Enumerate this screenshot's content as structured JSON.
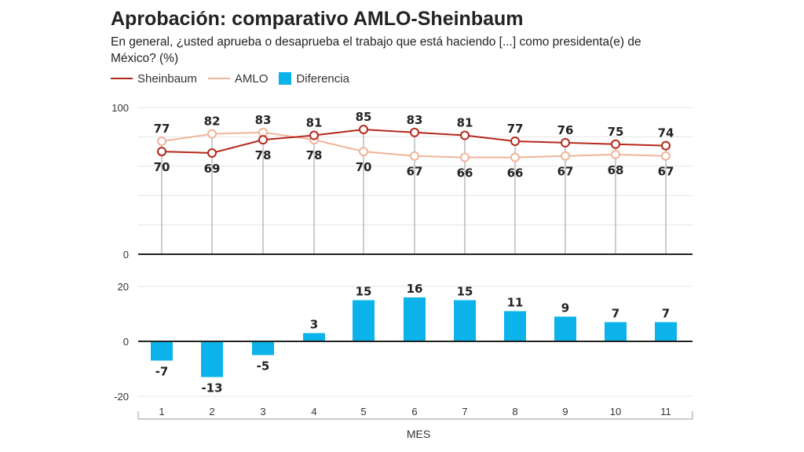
{
  "title": "Aprobación: comparativo AMLO-Sheinbaum",
  "subtitle": "En general, ¿usted aprueba o desaprueba el trabajo que está haciendo [...] como presidenta(e) de México? (%)",
  "legend": {
    "sheinbaum": "Sheinbaum",
    "amlo": "AMLO",
    "diferencia": "Diferencia"
  },
  "colors": {
    "sheinbaum": "#b5281c",
    "amlo": "#efb49a",
    "diferencia": "#0bb3ea"
  },
  "chart_data": [
    {
      "type": "line",
      "x": [
        1,
        2,
        3,
        4,
        5,
        6,
        7,
        8,
        9,
        10,
        11
      ],
      "series": [
        {
          "name": "Sheinbaum",
          "values": [
            70,
            69,
            78,
            81,
            85,
            83,
            81,
            77,
            76,
            75,
            74
          ]
        },
        {
          "name": "AMLO",
          "values": [
            77,
            82,
            83,
            78,
            70,
            67,
            66,
            66,
            67,
            68,
            67
          ]
        }
      ],
      "ylim": [
        0,
        100
      ],
      "yticks": [
        "100",
        "0"
      ],
      "grid": true
    },
    {
      "type": "bar",
      "categories": [
        "1",
        "2",
        "3",
        "4",
        "5",
        "6",
        "7",
        "8",
        "9",
        "10",
        "11"
      ],
      "series": [
        {
          "name": "Diferencia",
          "values": [
            -7,
            -13,
            -5,
            3,
            15,
            16,
            15,
            11,
            9,
            7,
            7
          ]
        }
      ],
      "ylim": [
        -20,
        20
      ],
      "yticks": [
        "20",
        "0",
        "-20"
      ],
      "xlabel": "MES",
      "grid": true
    }
  ]
}
